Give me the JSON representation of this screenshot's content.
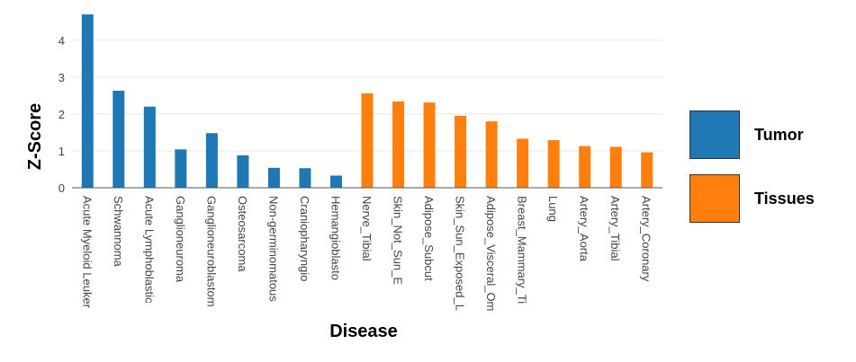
{
  "chart_data": {
    "type": "bar",
    "xlabel": "Disease",
    "ylabel": "Z-Score",
    "ylim": [
      0,
      4.75
    ],
    "yticks": [
      0,
      1,
      2,
      3,
      4
    ],
    "grid": true,
    "legend_position": "right",
    "categories": [
      "Acute Myeloid Leuker",
      "Schwannoma",
      "Acute Lymphoblastic",
      "Ganglioneuroma",
      "Ganglioneuroblastom",
      "Osteosarcoma",
      "Non-germinomatous",
      "Craniopharyngio",
      "Hemangioblasto",
      "Nerve_Tibial",
      "Skin_Not_Sun_E",
      "Adipose_Subcut",
      "Skin_Sun_Exposed_L",
      "Adipose_Visceral_Om",
      "Breast_Mammary_Ti",
      "Lung",
      "Artery_Aorta",
      "Artery_Tibial",
      "Artery_Coronary"
    ],
    "series": [
      {
        "name": "Tumor",
        "color": "#1f77b4",
        "values": [
          4.7,
          2.63,
          2.2,
          1.04,
          1.48,
          0.88,
          0.54,
          0.53,
          0.33,
          null,
          null,
          null,
          null,
          null,
          null,
          null,
          null,
          null,
          null
        ]
      },
      {
        "name": "Tissues",
        "color": "#ff7f0e",
        "values": [
          null,
          null,
          null,
          null,
          null,
          null,
          null,
          null,
          null,
          2.56,
          2.34,
          2.31,
          1.95,
          1.8,
          1.33,
          1.29,
          1.13,
          1.11,
          0.96
        ]
      }
    ]
  }
}
